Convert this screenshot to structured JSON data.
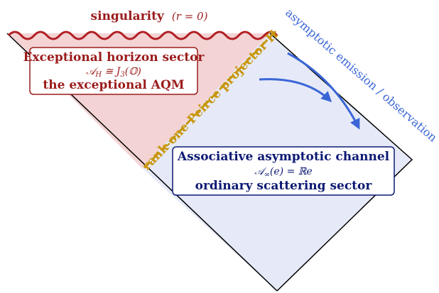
{
  "title": "singularity",
  "title_note": "(r = 0)",
  "horizon_box": {
    "heading": "Exceptional horizon sector",
    "formula": [
      "𝒜",
      "H",
      " ≅ J",
      "3",
      "(𝕆)"
    ],
    "caption": "the exceptional AQM"
  },
  "projector_label": "rank-one Peirce projector Π",
  "emission_label": "asymptotic emission / observation",
  "channel_box": {
    "heading": "Associative asymptotic channel",
    "formula": [
      "𝒜",
      "∞",
      "(e) = ℝe"
    ],
    "caption": "ordinary scattering sector"
  }
}
